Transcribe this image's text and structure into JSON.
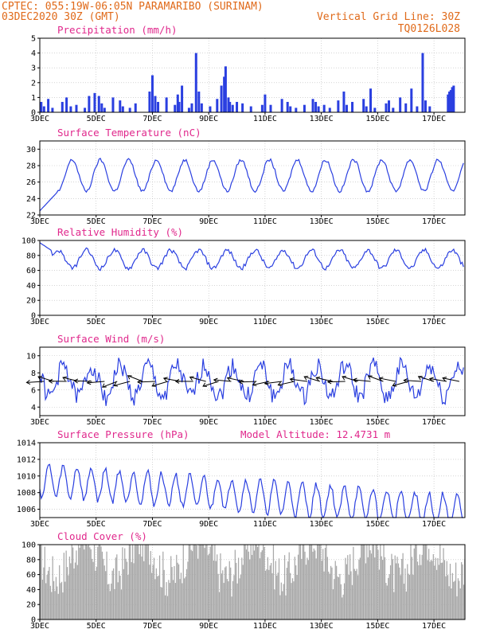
{
  "header": {
    "line1": "CPTEC:  055:19W-06:05N  PARAMARIBO (SURINAM)",
    "line2_left": "03DEC2020 30Z (GMT)",
    "line2_right": "Vertical Grid Line: 30Z",
    "line3_right": "TQ0126L028"
  },
  "colors": {
    "header": "#e06a1a",
    "title": "#e0288c",
    "line": "#2a3fe0",
    "bar": "#2a3fe0",
    "cloud": "#a8a8a8",
    "arrow": "#000000"
  },
  "chart_data": [
    {
      "type": "bar",
      "title": "Precipitation (mm/h)",
      "xticks": [
        "3DEC",
        "5DEC",
        "7DEC",
        "9DEC",
        "11DEC",
        "13DEC",
        "15DEC",
        "17DEC"
      ],
      "xlim": [
        3,
        18.1
      ],
      "yticks": [
        "0",
        "1",
        "2",
        "3",
        "4",
        "5"
      ],
      "ylim": [
        0,
        5
      ],
      "x": [
        3.05,
        3.15,
        3.3,
        3.45,
        3.8,
        3.95,
        4.1,
        4.3,
        4.6,
        4.75,
        4.95,
        5.1,
        5.2,
        5.3,
        5.6,
        5.85,
        5.95,
        6.2,
        6.4,
        6.9,
        7.0,
        7.1,
        7.2,
        7.5,
        7.8,
        7.9,
        7.95,
        8.05,
        8.3,
        8.4,
        8.55,
        8.65,
        8.75,
        9.05,
        9.3,
        9.45,
        9.55,
        9.6,
        9.7,
        9.75,
        9.85,
        10.0,
        10.2,
        10.5,
        10.9,
        11.0,
        11.2,
        11.6,
        11.8,
        11.9,
        12.1,
        12.4,
        12.7,
        12.8,
        12.9,
        13.1,
        13.3,
        13.6,
        13.8,
        13.9,
        14.1,
        14.5,
        14.6,
        14.75,
        14.9,
        15.3,
        15.4,
        15.55,
        15.8,
        16.0,
        16.2,
        16.4,
        16.6,
        16.7,
        16.85,
        17.5,
        17.55,
        17.6,
        17.65,
        17.7
      ],
      "values": [
        0.7,
        0.4,
        0.9,
        0.3,
        0.7,
        1.0,
        0.4,
        0.5,
        0.3,
        1.1,
        1.3,
        1.1,
        0.6,
        0.3,
        1.0,
        0.8,
        0.4,
        0.3,
        0.6,
        1.4,
        2.5,
        1.1,
        0.7,
        1.0,
        0.5,
        1.2,
        0.7,
        1.8,
        0.3,
        0.6,
        4.0,
        1.4,
        0.6,
        0.4,
        0.9,
        1.8,
        2.4,
        3.1,
        1.0,
        0.7,
        0.5,
        0.7,
        0.6,
        0.4,
        0.5,
        1.2,
        0.5,
        0.9,
        0.7,
        0.4,
        0.3,
        0.5,
        0.9,
        0.7,
        0.4,
        0.5,
        0.3,
        0.8,
        1.4,
        0.5,
        0.7,
        0.9,
        0.4,
        1.6,
        0.3,
        0.6,
        0.8,
        0.3,
        1.0,
        0.6,
        1.6,
        0.4,
        4.0,
        0.8,
        0.4,
        1.2,
        1.4,
        1.5,
        1.7,
        1.8
      ],
      "grid": true
    },
    {
      "type": "line",
      "title": "Surface Temperature (nC)",
      "xticks": [
        "3DEC",
        "5DEC",
        "7DEC",
        "9DEC",
        "11DEC",
        "13DEC",
        "15DEC",
        "17DEC"
      ],
      "xlim": [
        3,
        18.1
      ],
      "yticks": [
        "22",
        "24",
        "26",
        "28",
        "30"
      ],
      "ylim": [
        22,
        31
      ],
      "start_value": 22.5,
      "start_day": 3.0,
      "base_day": 3.6,
      "amplitude": 1.9,
      "mean": 26.8,
      "phase_day": 0.9,
      "grid": true
    },
    {
      "type": "line",
      "title": "Relative Humidity (%)",
      "xticks": [
        "3DEC",
        "5DEC",
        "7DEC",
        "9DEC",
        "11DEC",
        "13DEC",
        "15DEC",
        "17DEC"
      ],
      "xlim": [
        3,
        18.1
      ],
      "yticks": [
        "0",
        "20",
        "40",
        "60",
        "80",
        "100"
      ],
      "ylim": [
        0,
        100
      ],
      "mean": 75,
      "amplitude": 12,
      "start_value": 97,
      "grid": true
    },
    {
      "type": "line",
      "title": "Surface Wind (m/s)",
      "xticks": [
        "3DEC",
        "5DEC",
        "7DEC",
        "9DEC",
        "11DEC",
        "13DEC",
        "15DEC",
        "17DEC"
      ],
      "xlim": [
        3,
        18.1
      ],
      "yticks": [
        "4",
        "6",
        "8",
        "10"
      ],
      "ylim": [
        3,
        11
      ],
      "mean": 7,
      "amplitude": 1.8,
      "arrows_day": [
        3.15,
        3.5,
        3.95,
        4.4,
        4.85,
        5.3,
        5.75,
        6.2,
        6.65,
        7.1,
        7.55,
        8.0,
        8.45,
        8.9,
        9.35,
        9.8,
        10.25,
        10.7,
        11.15,
        11.6,
        12.05,
        12.5,
        12.95,
        13.4,
        13.85,
        14.3,
        14.75,
        15.2,
        15.65,
        16.1,
        16.55,
        17.0,
        17.45,
        17.9
      ],
      "grid": true
    },
    {
      "type": "line",
      "title": "Surface Pressure (hPa)",
      "annotation": "Model Altitude: 12.4731 m",
      "xticks": [
        "3DEC",
        "5DEC",
        "7DEC",
        "9DEC",
        "11DEC",
        "13DEC",
        "15DEC",
        "17DEC"
      ],
      "xlim": [
        3,
        18.1
      ],
      "yticks": [
        "1006",
        "1008",
        "1010",
        "1012",
        "1014"
      ],
      "ylim": [
        1005,
        1014
      ],
      "mean": 1009.5,
      "amplitude": 1.9,
      "trend_per_day": -0.25,
      "grid": true
    },
    {
      "type": "bar",
      "title": "Cloud Cover (%)",
      "xticks": [
        "3DEC",
        "5DEC",
        "7DEC",
        "9DEC",
        "11DEC",
        "13DEC",
        "15DEC",
        "17DEC"
      ],
      "xlim": [
        3,
        18.1
      ],
      "yticks": [
        "0",
        "20",
        "40",
        "60",
        "80",
        "100"
      ],
      "ylim": [
        0,
        100
      ],
      "grid": true
    }
  ]
}
